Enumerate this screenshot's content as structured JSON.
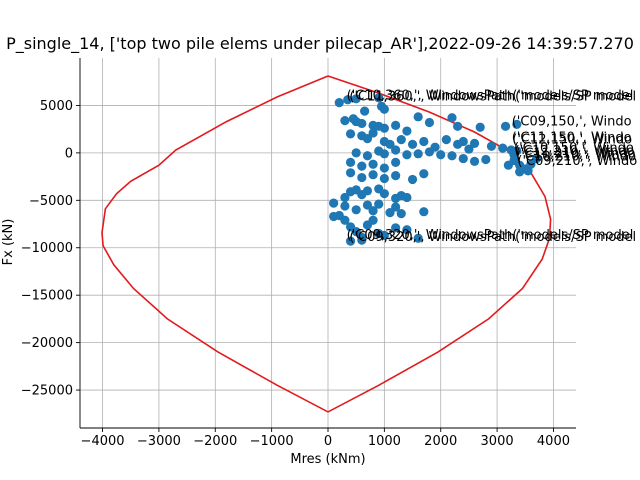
{
  "chart_data": {
    "type": "scatter",
    "title": "P_single_14, ['top two pile elems under pilecap_AR'],2022-09-26 14:39:57.270",
    "xlabel": "Mres (kNm)",
    "ylabel": "Fx (kN)",
    "xlim": [
      -4400,
      4400
    ],
    "ylim": [
      -29000,
      10000
    ],
    "xticks": [
      -4000,
      -3000,
      -2000,
      -1000,
      0,
      1000,
      2000,
      3000,
      4000
    ],
    "yticks": [
      -25000,
      -20000,
      -15000,
      -10000,
      -5000,
      0,
      5000
    ],
    "grid": true,
    "colors": {
      "envelope": "#e31a1c",
      "points": "#1f77b4"
    },
    "envelope": {
      "name": "",
      "points": [
        [
          0,
          8100
        ],
        [
          900,
          6300
        ],
        [
          1800,
          4300
        ],
        [
          2600,
          2200
        ],
        [
          3200,
          200
        ],
        [
          3600,
          -2100
        ],
        [
          3850,
          -4600
        ],
        [
          3950,
          -7000
        ],
        [
          3930,
          -9000
        ],
        [
          3800,
          -11200
        ],
        [
          3450,
          -14300
        ],
        [
          2850,
          -17500
        ],
        [
          1950,
          -21000
        ],
        [
          900,
          -24500
        ],
        [
          0,
          -27300
        ],
        [
          -900,
          -24500
        ],
        [
          -1950,
          -21000
        ],
        [
          -2850,
          -17500
        ],
        [
          -3450,
          -14300
        ],
        [
          -3800,
          -11800
        ],
        [
          -3990,
          -9800
        ],
        [
          -4010,
          -8400
        ],
        [
          -3950,
          -5900
        ],
        [
          -3750,
          -4300
        ],
        [
          -3500,
          -3000
        ],
        [
          -3000,
          -1300
        ],
        [
          -2700,
          300
        ],
        [
          -1800,
          3300
        ],
        [
          -900,
          5900
        ],
        [
          0,
          8100
        ]
      ]
    },
    "points": [
      [
        200,
        5300
      ],
      [
        350,
        5600
      ],
      [
        500,
        5700
      ],
      [
        900,
        5800
      ],
      [
        950,
        4900
      ],
      [
        1000,
        4600
      ],
      [
        650,
        4400
      ],
      [
        300,
        3400
      ],
      [
        450,
        3600
      ],
      [
        500,
        3300
      ],
      [
        600,
        3100
      ],
      [
        800,
        2900
      ],
      [
        900,
        2800
      ],
      [
        1000,
        2600
      ],
      [
        1200,
        2900
      ],
      [
        1400,
        2300
      ],
      [
        1600,
        3800
      ],
      [
        1800,
        3200
      ],
      [
        2200,
        3700
      ],
      [
        2300,
        2800
      ],
      [
        2700,
        2700
      ],
      [
        3150,
        2800
      ],
      [
        3350,
        3000
      ],
      [
        400,
        2000
      ],
      [
        600,
        1800
      ],
      [
        700,
        1500
      ],
      [
        800,
        2100
      ],
      [
        1000,
        1200
      ],
      [
        1100,
        900
      ],
      [
        1300,
        1400
      ],
      [
        1500,
        900
      ],
      [
        1700,
        1200
      ],
      [
        1900,
        600
      ],
      [
        2100,
        1400
      ],
      [
        2300,
        900
      ],
      [
        2400,
        1200
      ],
      [
        2500,
        400
      ],
      [
        2600,
        1000
      ],
      [
        2900,
        700
      ],
      [
        3100,
        500
      ],
      [
        3250,
        300
      ],
      [
        3300,
        -200
      ],
      [
        3350,
        200
      ],
      [
        500,
        0
      ],
      [
        700,
        -300
      ],
      [
        900,
        200
      ],
      [
        1000,
        -100
      ],
      [
        1200,
        300
      ],
      [
        1400,
        -200
      ],
      [
        1600,
        -100
      ],
      [
        1800,
        100
      ],
      [
        2000,
        -200
      ],
      [
        2200,
        -300
      ],
      [
        2400,
        -600
      ],
      [
        2600,
        -900
      ],
      [
        2800,
        -700
      ],
      [
        3300,
        -800
      ],
      [
        3400,
        -1300
      ],
      [
        3500,
        -1700
      ],
      [
        3600,
        -1200
      ],
      [
        3700,
        -600
      ],
      [
        400,
        -1000
      ],
      [
        600,
        -1400
      ],
      [
        800,
        -1200
      ],
      [
        1000,
        -1600
      ],
      [
        1200,
        -1000
      ],
      [
        400,
        -2100
      ],
      [
        600,
        -2600
      ],
      [
        800,
        -2300
      ],
      [
        1000,
        -2700
      ],
      [
        1200,
        -2400
      ],
      [
        1500,
        -2800
      ],
      [
        1700,
        -2200
      ],
      [
        3200,
        -1300
      ],
      [
        3400,
        -2000
      ],
      [
        3550,
        -1900
      ],
      [
        100,
        -5300
      ],
      [
        300,
        -4700
      ],
      [
        400,
        -4100
      ],
      [
        500,
        -3900
      ],
      [
        600,
        -4400
      ],
      [
        700,
        -4000
      ],
      [
        900,
        -3800
      ],
      [
        1000,
        -4300
      ],
      [
        1200,
        -4800
      ],
      [
        1300,
        -4500
      ],
      [
        1400,
        -4700
      ],
      [
        1200,
        -5700
      ],
      [
        1100,
        -6300
      ],
      [
        1300,
        -6400
      ],
      [
        1700,
        -6200
      ],
      [
        300,
        -5600
      ],
      [
        500,
        -6000
      ],
      [
        700,
        -5500
      ],
      [
        900,
        -5400
      ],
      [
        800,
        -6100
      ],
      [
        100,
        -6700
      ],
      [
        200,
        -6600
      ],
      [
        300,
        -7100
      ],
      [
        400,
        -7800
      ],
      [
        500,
        -8300
      ],
      [
        600,
        -8900
      ],
      [
        700,
        -7600
      ],
      [
        800,
        -7100
      ],
      [
        900,
        -8500
      ],
      [
        1000,
        -8700
      ],
      [
        1200,
        -7900
      ],
      [
        1400,
        -8100
      ],
      [
        1600,
        -9000
      ],
      [
        400,
        -9300
      ],
      [
        600,
        -9200
      ]
    ],
    "annotations": [
      {
        "text": "('C10,360,', WindowsPath('models/SP model",
        "x": 330,
        "y": 5600
      },
      {
        "text": "('C11,360,', WindowsPath('models/SP model",
        "x": 380,
        "y": 5500
      },
      {
        "text": "('C09,150,', Windo",
        "x": 3260,
        "y": 2900
      },
      {
        "text": "('C11,150,', Windo",
        "x": 3260,
        "y": 1200
      },
      {
        "text": "('C12,150,', Windo",
        "x": 3270,
        "y": 1000
      },
      {
        "text": "('C10,150,', Windo",
        "x": 3300,
        "y": 100
      },
      {
        "text": "('C12,210,', Windo",
        "x": 3310,
        "y": -200
      },
      {
        "text": "('C11,210,', Windo",
        "x": 3330,
        "y": -500
      },
      {
        "text": "('C10,210,', Windo",
        "x": 3340,
        "y": -800
      },
      {
        "text": "('C09,210,', Windo",
        "x": 3360,
        "y": -1300
      },
      {
        "text": "('C09,320,', WindowsPath('models/SP model",
        "x": 330,
        "y": -9100
      },
      {
        "text": "('C09,320,', WindowsPath('models/SP model",
        "x": 380,
        "y": -9300
      }
    ]
  }
}
